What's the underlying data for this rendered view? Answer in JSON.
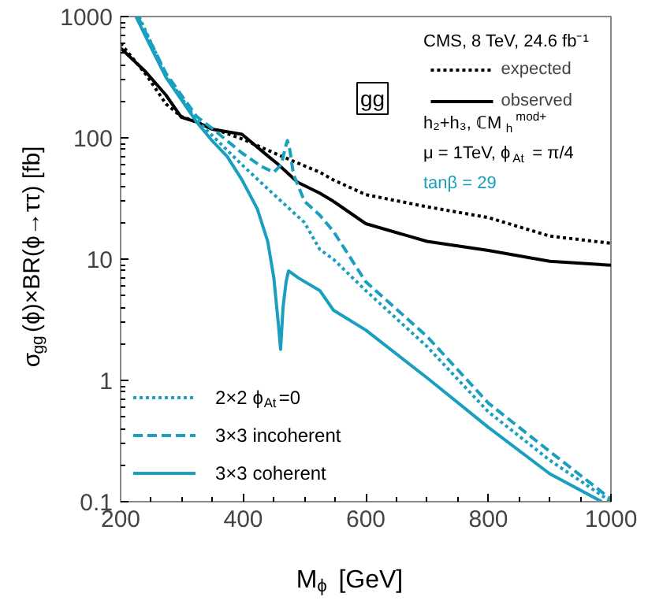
{
  "chart_data": {
    "type": "line",
    "xlabel": "M$_{ϕ}$ [GeV]",
    "ylabel": "σ$_{gg}$(ϕ)×BR(ϕ→ττ) [fb]",
    "log": "y",
    "xlim": [
      200,
      1000
    ],
    "ylim": [
      0.1,
      1000
    ],
    "xticks": [
      200,
      400,
      600,
      800,
      1000
    ],
    "yticks": [
      0.1,
      1,
      10,
      100,
      1000
    ],
    "grid": false,
    "legend": "bottom left",
    "series": [
      {
        "name": "expected",
        "color": "#000000",
        "line_style": "dotted",
        "x": [
          200,
          242,
          274,
          299,
          324,
          349,
          398,
          464,
          525,
          547,
          600,
          700,
          800,
          900,
          1000
        ],
        "values": [
          600,
          330,
          190,
          150,
          135,
          120,
          98,
          70,
          52,
          45,
          34,
          27,
          22,
          15.5,
          13.5
        ]
      },
      {
        "name": "observed",
        "color": "#000000",
        "line_style": "solid",
        "x": [
          200,
          241,
          274,
          299,
          324,
          349,
          398,
          440,
          456,
          489,
          525,
          547,
          600,
          700,
          800,
          900,
          1000
        ],
        "values": [
          550,
          350,
          225,
          148,
          135,
          118,
          107,
          71,
          61,
          43,
          35,
          30,
          19.6,
          14,
          11.8,
          9.6,
          8.9
        ]
      },
      {
        "name": "2×2 ϕ$_{At}$=0",
        "color": "#1a9fbf",
        "line_style": "dotted",
        "x": [
          230,
          274,
          324,
          349,
          398,
          440,
          500,
          525,
          547,
          600,
          700,
          800,
          900,
          1000
        ],
        "values": [
          1000,
          330,
          140,
          105,
          60,
          38,
          20,
          12,
          10,
          5.5,
          1.9,
          0.55,
          0.22,
          0.1
        ]
      },
      {
        "name": "3×3 incoherent",
        "color": "#1a9fbf",
        "line_style": "dashed",
        "x": [
          228,
          274,
          324,
          349,
          398,
          430,
          450,
          462,
          468,
          472,
          476,
          482,
          500,
          525,
          547,
          600,
          700,
          800,
          900,
          1000
        ],
        "values": [
          1000,
          340,
          150,
          120,
          75,
          58,
          52,
          60,
          80,
          95,
          80,
          50,
          30,
          23,
          17,
          6.5,
          2.3,
          0.65,
          0.26,
          0.105
        ]
      },
      {
        "name": "3×3 coherent",
        "color": "#1a9fbf",
        "line_style": "solid",
        "x": [
          225,
          250,
          274,
          324,
          349,
          374,
          398,
          423,
          440,
          450,
          458,
          461,
          465,
          470,
          474,
          490,
          525,
          547,
          600,
          700,
          800,
          900,
          985
        ],
        "values": [
          1000,
          550,
          316,
          135,
          95,
          70,
          45,
          26,
          14,
          7,
          2.7,
          1.8,
          4,
          6.5,
          8,
          7,
          5.5,
          3.8,
          2.6,
          1.05,
          0.41,
          0.17,
          0.1
        ]
      }
    ],
    "annotations": [
      "gg",
      "CMS, 8 TeV, 24.6 fb⁻¹",
      "h₂+h₃, ℂM$_{h}$$^{mod+}$",
      "μ = 1TeV, ϕ$_{At}$ = π/4",
      "tanβ = 29"
    ]
  }
}
